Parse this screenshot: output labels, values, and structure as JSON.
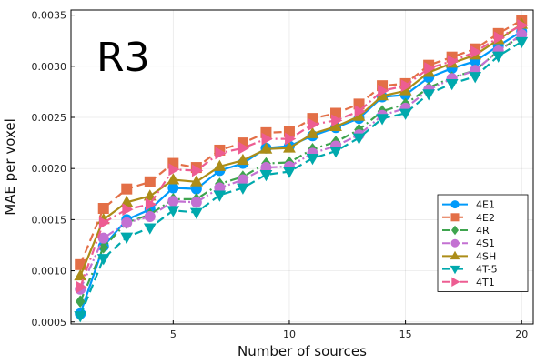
{
  "chart_data": {
    "type": "line",
    "panel_label": "R3",
    "xlabel": "Number of sources",
    "ylabel": "MAE per voxel",
    "xlim": [
      0.6,
      20.5
    ],
    "ylim": [
      0.00048,
      0.00355
    ],
    "x_ticks": [
      5,
      10,
      15,
      20
    ],
    "x_tick_labels": [
      "5",
      "10",
      "15",
      "20"
    ],
    "y_ticks": [
      0.0005,
      0.001,
      0.0015,
      0.002,
      0.0025,
      0.003,
      0.0035
    ],
    "y_tick_labels": [
      "0.0005",
      "0.0010",
      "0.0015",
      "0.0020",
      "0.0025",
      "0.0030",
      "0.0035"
    ],
    "grid": true,
    "legend_position": "bottom-right",
    "x": [
      1,
      2,
      3,
      4,
      5,
      6,
      7,
      8,
      9,
      10,
      11,
      12,
      13,
      14,
      15,
      16,
      17,
      18,
      19,
      20
    ],
    "series": [
      {
        "name": "4E1",
        "color": "#009AFA",
        "marker": "circle",
        "dash": "solid",
        "values": [
          0.00058,
          0.00124,
          0.0015,
          0.0016,
          0.00181,
          0.0018,
          0.00198,
          0.00205,
          0.0022,
          0.00222,
          0.00232,
          0.0024,
          0.00249,
          0.0027,
          0.00272,
          0.00289,
          0.00298,
          0.00305,
          0.0032,
          0.00334
        ]
      },
      {
        "name": "4E2",
        "color": "#E36F47",
        "marker": "square",
        "dash": "dash",
        "values": [
          0.00106,
          0.00161,
          0.0018,
          0.00187,
          0.00205,
          0.00201,
          0.00218,
          0.00225,
          0.00235,
          0.00236,
          0.00249,
          0.00254,
          0.00263,
          0.00281,
          0.00283,
          0.00301,
          0.00309,
          0.00317,
          0.00332,
          0.00345
        ]
      },
      {
        "name": "4R",
        "color": "#3EA44E",
        "marker": "diamond",
        "dash": "dashdot",
        "values": [
          0.0007,
          0.00123,
          0.00147,
          0.00155,
          0.0017,
          0.0017,
          0.00185,
          0.00192,
          0.00205,
          0.00206,
          0.00219,
          0.00226,
          0.00238,
          0.00256,
          0.00263,
          0.00279,
          0.00289,
          0.00296,
          0.00315,
          0.0033
        ]
      },
      {
        "name": "4S1",
        "color": "#C371D2",
        "marker": "circle",
        "dash": "dashdotdot",
        "values": [
          0.00082,
          0.00132,
          0.00147,
          0.00153,
          0.00168,
          0.00167,
          0.00181,
          0.00189,
          0.00201,
          0.00202,
          0.00215,
          0.00222,
          0.00233,
          0.00252,
          0.00259,
          0.00277,
          0.00288,
          0.00296,
          0.00315,
          0.00331
        ]
      },
      {
        "name": "4SH",
        "color": "#AC8D18",
        "marker": "triangle-up",
        "dash": "solid",
        "values": [
          0.00095,
          0.0015,
          0.00167,
          0.00173,
          0.00189,
          0.00187,
          0.00202,
          0.00208,
          0.00219,
          0.0022,
          0.00234,
          0.00241,
          0.00251,
          0.00271,
          0.00276,
          0.00294,
          0.00303,
          0.00311,
          0.00326,
          0.00341
        ]
      },
      {
        "name": "4T-5",
        "color": "#00A9AD",
        "marker": "triangle-down",
        "dash": "dash",
        "values": [
          0.00056,
          0.00112,
          0.00133,
          0.00142,
          0.00159,
          0.00157,
          0.00174,
          0.00181,
          0.00194,
          0.00197,
          0.0021,
          0.00217,
          0.0023,
          0.00249,
          0.00254,
          0.00273,
          0.00283,
          0.0029,
          0.0031,
          0.00324
        ]
      },
      {
        "name": "4T1",
        "color": "#ED5D92",
        "marker": "triangle-right",
        "dash": "dashdot",
        "values": [
          0.00084,
          0.00147,
          0.0016,
          0.00165,
          0.00199,
          0.00198,
          0.00215,
          0.0022,
          0.00229,
          0.00229,
          0.00243,
          0.00247,
          0.00256,
          0.00276,
          0.00281,
          0.00298,
          0.00305,
          0.00314,
          0.00328,
          0.0034
        ]
      }
    ]
  }
}
